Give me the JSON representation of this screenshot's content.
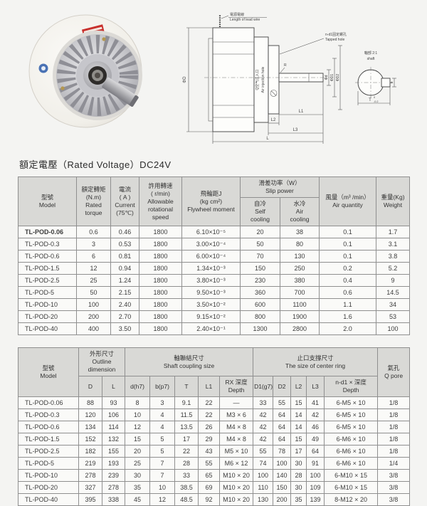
{
  "heading": "額定電壓（Rated Voltage）DC24V",
  "colors": {
    "page_bg": "#f4f4f2",
    "table_header_bg": "#d9d9d6",
    "table_border": "#8f8f8f",
    "photo_label_red": "#c8302c",
    "photo_logo_blue": "#4a72b4"
  },
  "photo": {
    "name": "powder-brake-product-photo"
  },
  "diagram": {
    "lead_wire_cn": "電源電線",
    "lead_wire_en": "Length of lead wire",
    "tapped_cn": "n-d1固定螺孔",
    "tapped_en": "Tapped hole",
    "air_cn": "Q空气注入口",
    "air_en": "Air injection hole",
    "shaft_cn": "軸部 2:1",
    "shaft_en": "shaft",
    "dims": {
      "phiD": "ΦD",
      "phid": "Φd",
      "phiD1": "ΦD1",
      "phiD2": "ΦD2",
      "R": "R",
      "L1": "L1",
      "L2": "L2",
      "L3": "L3",
      "L": "L",
      "T": "T",
      "tol_top": "0",
      "tol_bottom": "-0.2",
      "b": "b"
    }
  },
  "table1": {
    "headers": {
      "model": "型號\nModel",
      "torque": "額定轉矩\n(N.m)\nRated\ntorque",
      "current": "電流\n( A )\nCurrent\n(75℃)",
      "speed": "許用轉速\n( r/min)\nAllowable\nrotational\nspeed",
      "flywheel": "飛輪距J\n(kg cm²)\nFlywheel moment",
      "slip": "滑差功率（W）\nSlip power",
      "self_cooling": "自冷\nSelf\ncooling",
      "water_cooling": "水冷\nAir\ncooling",
      "air_qty": "風量（m³ /min）\nAir quantity",
      "weight": "重量(Kg)\nWeight"
    },
    "rows": [
      [
        "TL-POD-0.06",
        "0.6",
        "0.46",
        "1800",
        "6.10×10⁻⁵",
        "20",
        "38",
        "0.1",
        "1.7"
      ],
      [
        "TL-POD-0.3",
        "3",
        "0.53",
        "1800",
        "3.00×10⁻⁴",
        "50",
        "80",
        "0.1",
        "3.1"
      ],
      [
        "TL-POD-0.6",
        "6",
        "0.81",
        "1800",
        "6.00×10⁻⁴",
        "70",
        "130",
        "0.1",
        "3.8"
      ],
      [
        "TL-POD-1.5",
        "12",
        "0.94",
        "1800",
        "1.34×10⁻³",
        "150",
        "250",
        "0.2",
        "5.2"
      ],
      [
        "TL-POD-2.5",
        "25",
        "1.24",
        "1800",
        "3.80×10⁻³",
        "230",
        "380",
        "0.4",
        "9"
      ],
      [
        "TL-POD-5",
        "50",
        "2.15",
        "1800",
        "9.50×10⁻³",
        "360",
        "700",
        "0.6",
        "14.5"
      ],
      [
        "TL-POD-10",
        "100",
        "2.40",
        "1800",
        "3.50×10⁻²",
        "600",
        "1100",
        "1.1",
        "34"
      ],
      [
        "TL-POD-20",
        "200",
        "2.70",
        "1800",
        "9.15×10⁻²",
        "800",
        "1900",
        "1.6",
        "53"
      ],
      [
        "TL-POD-40",
        "400",
        "3.50",
        "1800",
        "2.40×10⁻¹",
        "1300",
        "2800",
        "2.0",
        "100"
      ]
    ]
  },
  "table2": {
    "headers": {
      "model": "型號\nModel",
      "outline": "外形尺寸\nOutline\ndimension",
      "shaft_coupling": "軸聯結尺寸\nShaft coupling size",
      "center_ring": "止口支撐尺寸\nThe size of center ring",
      "qpore": "氣孔\nQ pore"
    },
    "sub": [
      "D",
      "L",
      "d(h7)",
      "b(p7)",
      "T",
      "L1",
      "RX 深度\nDepth",
      "D1(g7)",
      "D2",
      "L2",
      "L3",
      "n-d1 × 深度\nDepth"
    ],
    "rows": [
      [
        "TL-POD-0.06",
        "88",
        "93",
        "8",
        "3",
        "9.1",
        "22",
        "—",
        "33",
        "55",
        "15",
        "41",
        "6-M5 × 10",
        "1/8"
      ],
      [
        "TL-POD-0.3",
        "120",
        "106",
        "10",
        "4",
        "11.5",
        "22",
        "M3 × 6",
        "42",
        "64",
        "14",
        "42",
        "6-M5 × 10",
        "1/8"
      ],
      [
        "TL-POD-0.6",
        "134",
        "114",
        "12",
        "4",
        "13.5",
        "26",
        "M4 × 8",
        "42",
        "64",
        "14",
        "46",
        "6-M5 × 10",
        "1/8"
      ],
      [
        "TL-POD-1.5",
        "152",
        "132",
        "15",
        "5",
        "17",
        "29",
        "M4 × 8",
        "42",
        "64",
        "15",
        "49",
        "6-M6 × 10",
        "1/8"
      ],
      [
        "TL-POD-2.5",
        "182",
        "155",
        "20",
        "5",
        "22",
        "43",
        "M5 × 10",
        "55",
        "78",
        "17",
        "64",
        "6-M6 × 10",
        "1/8"
      ],
      [
        "TL-POD-5",
        "219",
        "193",
        "25",
        "7",
        "28",
        "55",
        "M6 × 12",
        "74",
        "100",
        "30",
        "91",
        "6-M6 × 10",
        "1/4"
      ],
      [
        "TL-POD-10",
        "278",
        "239",
        "30",
        "7",
        "33",
        "65",
        "M10 × 20",
        "100",
        "140",
        "28",
        "100",
        "6-M10 × 15",
        "3/8"
      ],
      [
        "TL-POD-20",
        "327",
        "278",
        "35",
        "10",
        "38.5",
        "69",
        "M10 × 20",
        "110",
        "150",
        "30",
        "109",
        "6-M10 × 15",
        "3/8"
      ],
      [
        "TL-POD-40",
        "395",
        "338",
        "45",
        "12",
        "48.5",
        "92",
        "M10 × 20",
        "130",
        "200",
        "35",
        "139",
        "8-M12 × 20",
        "3/8"
      ]
    ]
  }
}
